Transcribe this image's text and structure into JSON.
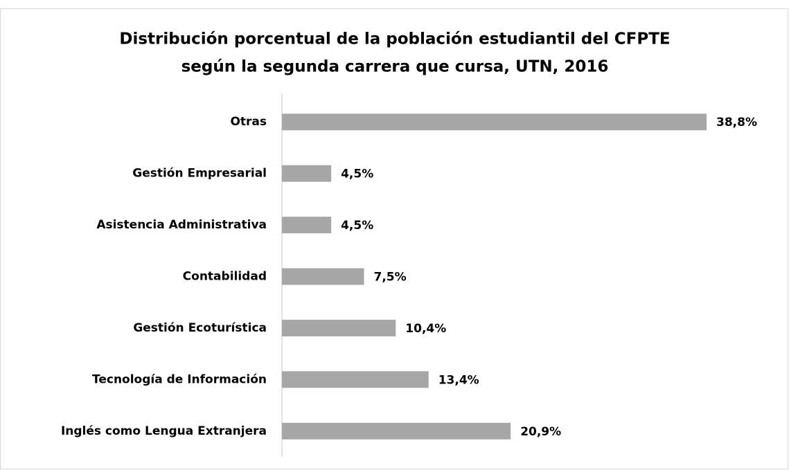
{
  "chart_data": {
    "type": "bar",
    "orientation": "horizontal",
    "title": [
      "Distribución porcentual de la población estudiantil del CFPTE",
      "según la segunda carrera que cursa, UTN, 2016"
    ],
    "categories": [
      "Otras",
      "Gestión Empresarial",
      "Asistencia Administrativa",
      "Contabilidad",
      "Gestión Ecoturística",
      "Tecnología de Información",
      "Inglés como Lengua Extranjera"
    ],
    "values": [
      38.8,
      4.5,
      4.5,
      7.5,
      10.4,
      13.4,
      20.9
    ],
    "value_labels": [
      "38,8%",
      "4,5%",
      "4,5%",
      "7,5%",
      "10,4%",
      "13,4%",
      "20,9%"
    ],
    "color": "#a6a6a6",
    "grid": false
  }
}
